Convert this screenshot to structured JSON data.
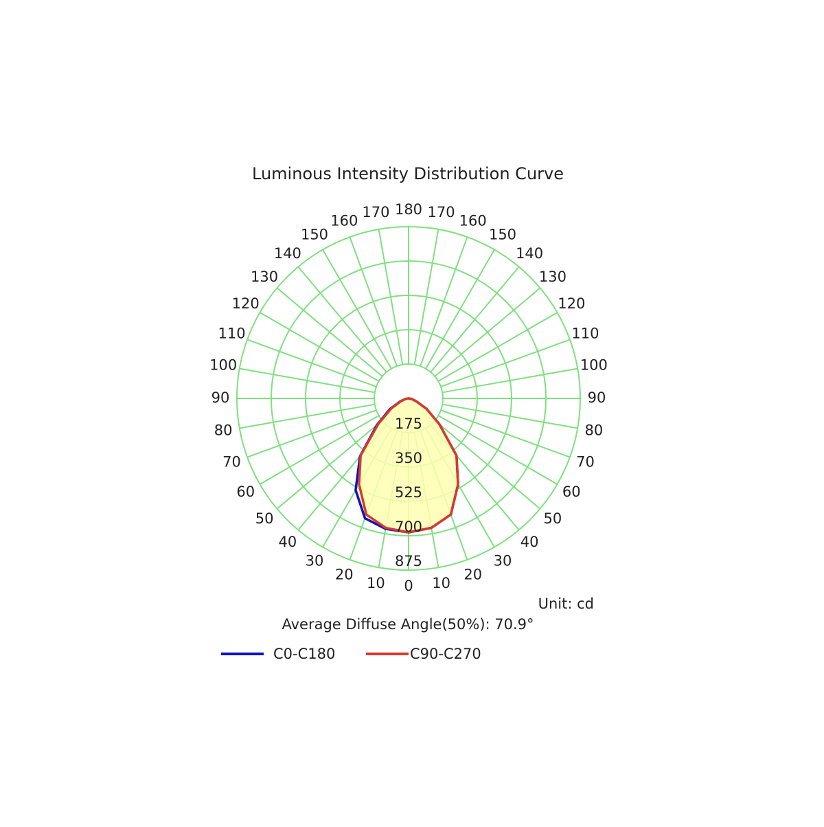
{
  "chart_data": {
    "type": "polar",
    "title": "Luminous Intensity Distribution Curve",
    "unit_label": "Unit: cd",
    "annotation": "Average Diffuse Angle(50%): 70.9°",
    "x": [
      -90,
      -80,
      -70,
      -60,
      -50,
      -40,
      -30,
      -20,
      -10,
      0,
      10,
      20,
      30,
      40,
      50,
      60,
      70,
      80,
      90
    ],
    "series": [
      {
        "name": "C0-C180",
        "color": "#1010c8",
        "values": [
          0,
          15,
          45,
          110,
          210,
          385,
          540,
          650,
          675,
          683,
          670,
          630,
          505,
          380,
          205,
          105,
          40,
          15,
          0
        ]
      },
      {
        "name": "C90-C270",
        "color": "#d83a2a",
        "values": [
          0,
          15,
          40,
          100,
          200,
          380,
          505,
          630,
          670,
          683,
          670,
          630,
          505,
          380,
          205,
          105,
          40,
          15,
          0
        ]
      }
    ],
    "rlim": [
      0,
      875
    ],
    "rticks": [
      175,
      350,
      525,
      700,
      875
    ],
    "angle_ticks": [
      0,
      10,
      20,
      30,
      40,
      50,
      60,
      70,
      80,
      90,
      100,
      110,
      120,
      130,
      140,
      150,
      160,
      170,
      180
    ],
    "fill": "#ffffb0",
    "grid_color": "#7fe07f"
  }
}
